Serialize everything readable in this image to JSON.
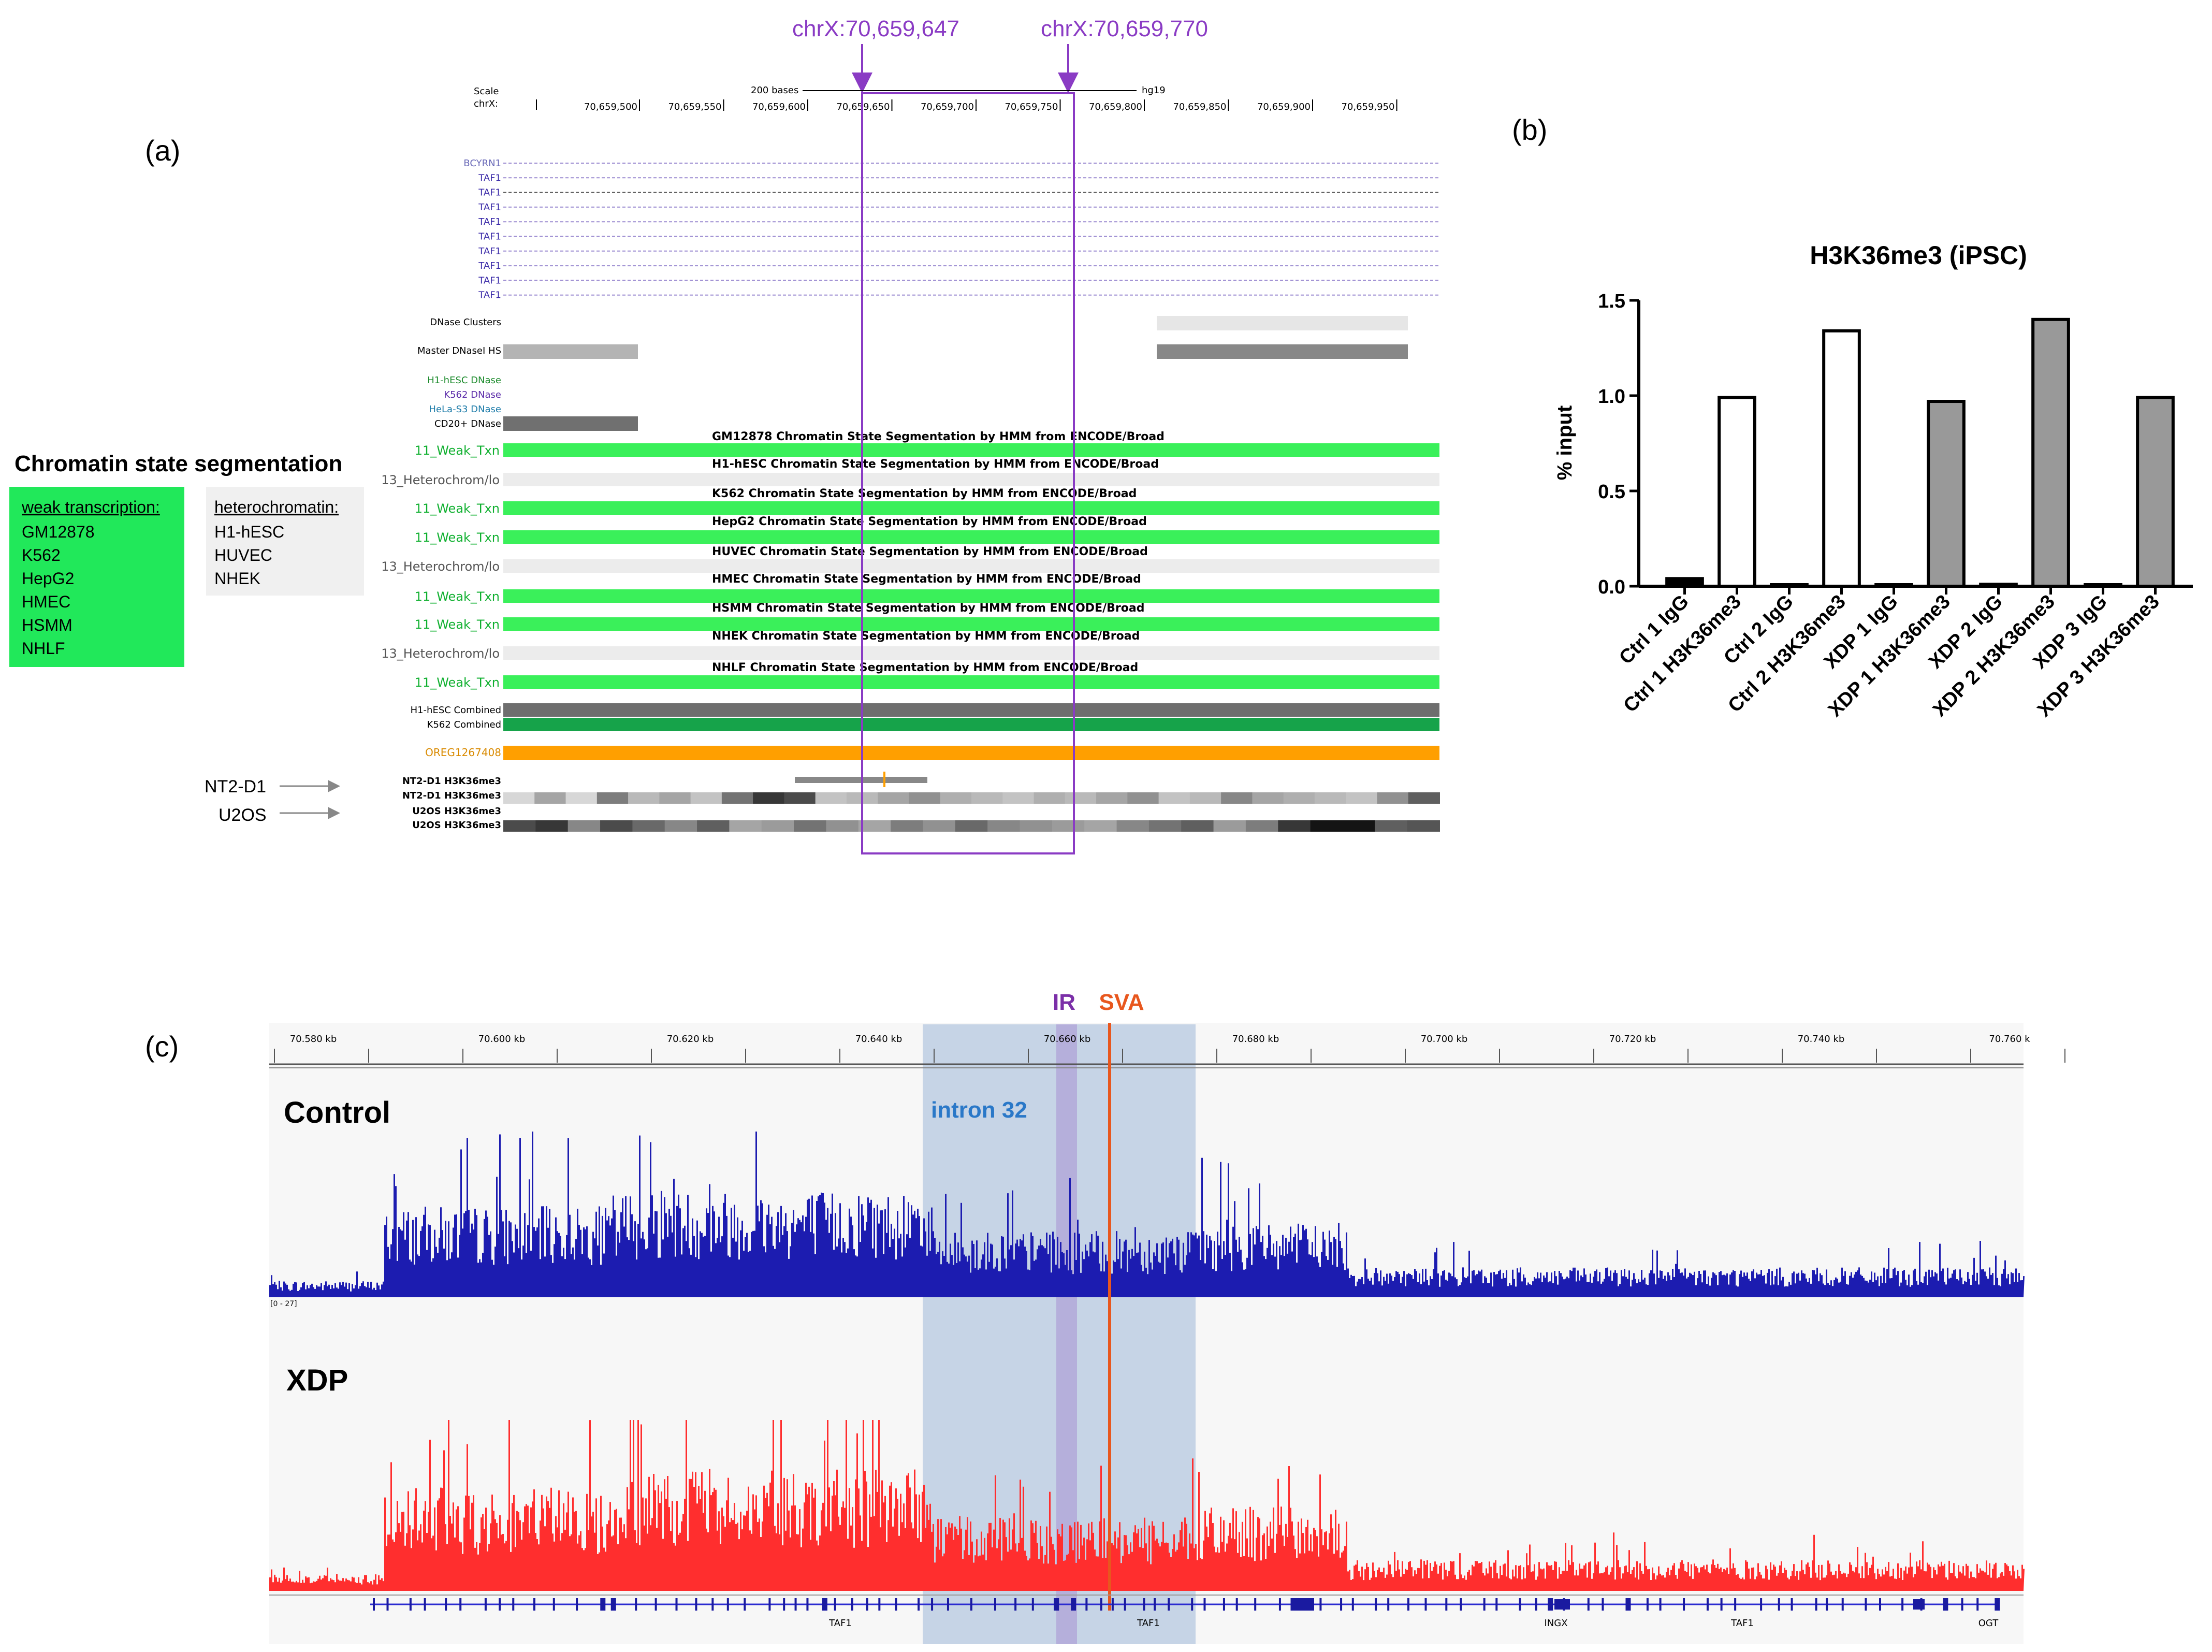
{
  "panel_a": {
    "label": "(a)",
    "markers": {
      "left": "chrX:70,659,647",
      "right": "chrX:70,659,770"
    },
    "ruler": {
      "scale_label": "Scale",
      "chrom_label": "chrX:",
      "scale_text": "200 bases",
      "assembly": "hg19",
      "ticks": [
        "70,659,500",
        "70,659,550",
        "70,659,600",
        "70,659,650",
        "70,659,700",
        "70,659,750",
        "70,659,800",
        "70,659,850",
        "70,659,900",
        "70,659,950"
      ]
    },
    "genes": [
      "BCYRN1",
      "TAF1",
      "TAF1",
      "TAF1",
      "TAF1",
      "TAF1",
      "TAF1",
      "TAF1",
      "TAF1",
      "TAF1"
    ],
    "dnase": {
      "clusters": "DNase Clusters",
      "master": "Master DNaseI HS",
      "h1": "H1-hESC DNase",
      "k562": "K562 DNase",
      "hela": "HeLa-S3 DNase",
      "cd20": "CD20+ DNase"
    },
    "chromhmm": [
      {
        "state": "11_Weak_Txn",
        "title": "GM12878 Chromatin State Segmentation by HMM from ENCODE/Broad",
        "weak": true
      },
      {
        "state": "13_Heterochrom/lo",
        "title": "H1-hESC Chromatin State Segmentation by HMM from ENCODE/Broad",
        "weak": false
      },
      {
        "state": "11_Weak_Txn",
        "title": "K562 Chromatin State Segmentation by HMM from ENCODE/Broad",
        "weak": true
      },
      {
        "state": "11_Weak_Txn",
        "title": "HepG2 Chromatin State Segmentation by HMM from ENCODE/Broad",
        "weak": true
      },
      {
        "state": "13_Heterochrom/lo",
        "title": "HUVEC Chromatin State Segmentation by HMM from ENCODE/Broad",
        "weak": false
      },
      {
        "state": "11_Weak_Txn",
        "title": "HMEC Chromatin State Segmentation by HMM from ENCODE/Broad",
        "weak": true
      },
      {
        "state": "11_Weak_Txn",
        "title": "HSMM Chromatin State Segmentation by HMM from ENCODE/Broad",
        "weak": true
      },
      {
        "state": "13_Heterochrom/lo",
        "title": "NHEK Chromatin State Segmentation by HMM from ENCODE/Broad",
        "weak": false
      },
      {
        "state": "11_Weak_Txn",
        "title": "NHLF Chromatin State Segmentation by HMM from ENCODE/Broad",
        "weak": true
      }
    ],
    "combined": {
      "h1": "H1-hESC Combined",
      "k562": "K562 Combined"
    },
    "oreg": "OREG1267408",
    "h3": {
      "nt2_arrow": "NT2-D1",
      "u2os_arrow": "U2OS",
      "t1": "NT2-D1 H3K36me3",
      "t2": "NT2-D1 H3K36me3",
      "t3": "U2OS H3K36me3",
      "t4": "U2OS H3K36me3"
    },
    "legend": {
      "title": "Chromatin state segmentation",
      "weak_heading": "weak transcription:",
      "weak_items": [
        "GM12878",
        "K562",
        "HepG2",
        "HMEC",
        "HSMM",
        "NHLF"
      ],
      "het_heading": "heterochromatin:",
      "het_items": [
        "H1-hESC",
        "HUVEC",
        "NHEK"
      ]
    }
  },
  "panel_b": {
    "label": "(b)",
    "chart_data": {
      "type": "bar",
      "title": "H3K36me3 (iPSC)",
      "ylabel": "% input",
      "xlabel": "",
      "ylim": [
        0,
        1.5
      ],
      "yticks": [
        "0.0",
        "0.5",
        "1.0",
        "1.5"
      ],
      "categories": [
        "Ctrl 1 IgG",
        "Ctrl 1 H3K36me3",
        "Ctrl 2 IgG",
        "Ctrl 2 H3K36me3",
        "XDP 1 IgG",
        "XDP 1 H3K36me3",
        "XDP 2 IgG",
        "XDP 2 H3K36me3",
        "XDP 3 IgG",
        "XDP 3 H3K36me3"
      ],
      "values": [
        0.04,
        0.99,
        0.0,
        1.34,
        0.005,
        0.97,
        0.01,
        1.4,
        0.005,
        0.99
      ],
      "fills": [
        "#000000",
        "#ffffff",
        "#ffffff",
        "#ffffff",
        "#000000",
        "#999999",
        "#000000",
        "#999999",
        "#000000",
        "#999999"
      ]
    }
  },
  "panel_c": {
    "label": "(c)",
    "ir_label": "IR",
    "sva_label": "SVA",
    "intron_label": "intron 32",
    "ruler_ticks": [
      "70.580 kb",
      "70.600 kb",
      "70.620 kb",
      "70.640 kb",
      "70.660 kb",
      "70.680 kb",
      "70.700 kb",
      "70.720 kb",
      "70.740 kb",
      "70.760 k"
    ],
    "control_label": "Control",
    "xdp_label": "XDP",
    "range_label": "[0 - 27]",
    "gene_labels": [
      "TAF1",
      "TAF1",
      "INGX",
      "TAF1",
      "OGT"
    ],
    "colors": {
      "control": "#1c1cb0",
      "xdp": "#ff2e2e",
      "ir": "#7b2fa8",
      "sva": "#e8571e",
      "intron": "#2a78c8",
      "highlight": "#b6c8e0",
      "marker": "#8a3bc4"
    }
  }
}
